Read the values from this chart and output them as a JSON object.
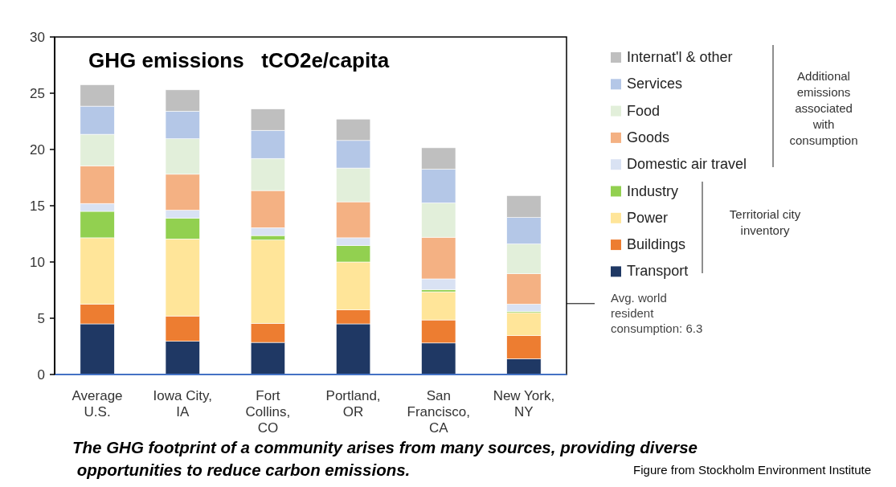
{
  "chart_data": {
    "type": "bar",
    "stacked": true,
    "title": "GHG emissions   tCO2e/capita",
    "categories": [
      "Average\nU.S.",
      "Iowa City,\nIA",
      "Fort\nCollins,\nCO",
      "Portland,\nOR",
      "San\nFrancisco,\nCA",
      "New York,\nNY"
    ],
    "series": [
      {
        "name": "Transport",
        "color": "#1f3864",
        "values": [
          4.5,
          2.95,
          2.85,
          4.5,
          2.8,
          1.4
        ]
      },
      {
        "name": "Buildings",
        "color": "#ed7d31",
        "values": [
          1.75,
          2.25,
          1.7,
          1.25,
          2.05,
          2.05
        ]
      },
      {
        "name": "Power",
        "color": "#ffe599",
        "values": [
          5.9,
          6.85,
          7.4,
          4.25,
          2.5,
          2.05
        ]
      },
      {
        "name": "Industry",
        "color": "#92d050",
        "values": [
          2.35,
          1.85,
          0.4,
          1.45,
          0.2,
          0.1
        ]
      },
      {
        "name": "Domestic air travel",
        "color": "#d9e2f3",
        "values": [
          0.7,
          0.7,
          0.7,
          0.7,
          0.95,
          0.65
        ]
      },
      {
        "name": "Goods",
        "color": "#f4b183",
        "values": [
          3.35,
          3.2,
          3.3,
          3.2,
          3.7,
          2.7
        ]
      },
      {
        "name": "Food",
        "color": "#e2efda",
        "values": [
          2.8,
          3.15,
          2.85,
          3.0,
          3.05,
          2.65
        ]
      },
      {
        "name": "Services",
        "color": "#b4c7e7",
        "values": [
          2.5,
          2.45,
          2.5,
          2.45,
          3.0,
          2.35
        ]
      },
      {
        "name": "Internat'l & other",
        "color": "#bfbfbf",
        "values": [
          1.9,
          1.9,
          1.9,
          1.9,
          1.9,
          1.95
        ]
      }
    ],
    "ylim": [
      0,
      30
    ],
    "yticks": [
      0,
      5,
      10,
      15,
      20,
      25,
      30
    ],
    "grid": false,
    "legend": "right",
    "ref_lines": [
      {
        "axis": "y",
        "value": 6.3,
        "label": "Avg. world\nresident\nconsumption: 6.3"
      }
    ],
    "annotations": [
      "Additional\nemissions\nassociated\nwith\nconsumption",
      "Territorial city\ninventory",
      "The GHG footprint of a community arises from many sources, providing diverse\n opportunities to reduce carbon emissions.",
      "Figure from Stockholm Environment Institute"
    ]
  }
}
